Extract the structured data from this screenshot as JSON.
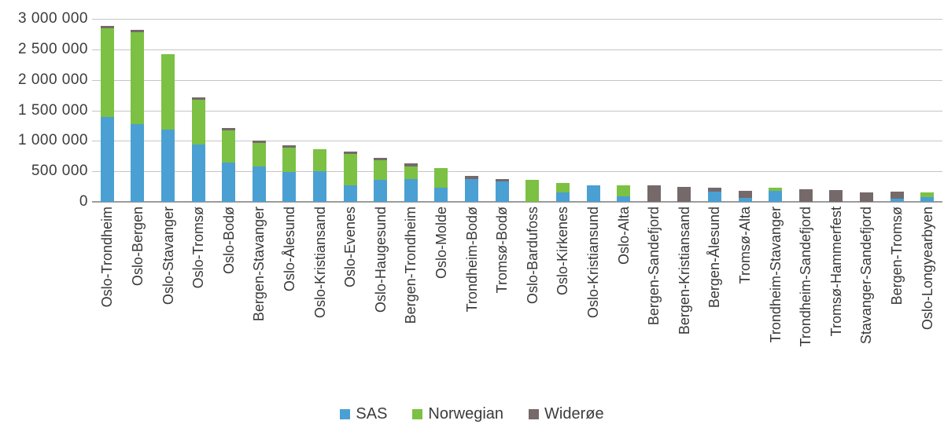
{
  "chart_data": {
    "type": "bar",
    "stacked": true,
    "title": "",
    "xlabel": "",
    "ylabel": "",
    "ylim": [
      0,
      3000000
    ],
    "grid": true,
    "legend_position": "bottom",
    "y_ticks": [
      {
        "label": "3 000 000",
        "value": 3000000
      },
      {
        "label": "2 500 000",
        "value": 2500000
      },
      {
        "label": "2 000 000",
        "value": 2000000
      },
      {
        "label": "1 500 000",
        "value": 1500000
      },
      {
        "label": "1 000 000",
        "value": 1000000
      },
      {
        "label": "500 000",
        "value": 500000
      },
      {
        "label": "0",
        "value": 0
      }
    ],
    "categories": [
      "Oslo-Trondheim",
      "Oslo-Bergen",
      "Oslo-Stavanger",
      "Oslo-Tromsø",
      "Oslo-Bodø",
      "Bergen-Stavanger",
      "Oslo-Ålesund",
      "Oslo-Kristiansand",
      "Oslo-Evenes",
      "Oslo-Haugesund",
      "Bergen-Trondheim",
      "Oslo-Molde",
      "Trondheim-Bodø",
      "Tromsø-Bodø",
      "Oslo-Bardufoss",
      "Oslo-Kirkenes",
      "Oslo-Kristiansund",
      "Oslo-Alta",
      "Bergen-Sandefjord",
      "Bergen-Kristiansand",
      "Bergen-Ålesund",
      "Tromsø-Alta",
      "Trondheim-Stavanger",
      "Trondheim-Sandefjord",
      "Tromsø-Hammerfest",
      "Stavanger-Sandefjord",
      "Bergen-Tromsø",
      "Oslo-Longyearbyen"
    ],
    "series": [
      {
        "name": "SAS",
        "color": "#4aa0d2",
        "values": [
          1390000,
          1280000,
          1190000,
          940000,
          650000,
          575000,
          490000,
          500000,
          265000,
          365000,
          375000,
          230000,
          375000,
          335000,
          0,
          155000,
          265000,
          90000,
          0,
          0,
          170000,
          70000,
          185000,
          0,
          0,
          0,
          55000,
          80000
        ]
      },
      {
        "name": "Norwegian",
        "color": "#7cc143",
        "values": [
          1460000,
          1500000,
          1230000,
          730000,
          520000,
          395000,
          400000,
          365000,
          515000,
          320000,
          210000,
          330000,
          0,
          0,
          355000,
          150000,
          0,
          185000,
          0,
          0,
          0,
          0,
          50000,
          0,
          0,
          0,
          0,
          70000
        ]
      },
      {
        "name": "Widerøe",
        "color": "#75696a",
        "values": [
          40000,
          40000,
          0,
          40000,
          40000,
          40000,
          40000,
          0,
          40000,
          40000,
          40000,
          0,
          45000,
          45000,
          0,
          0,
          0,
          0,
          270000,
          240000,
          60000,
          110000,
          0,
          205000,
          190000,
          160000,
          110000,
          0
        ]
      }
    ],
    "colors": {
      "gridline": "#c5c5c5",
      "axis_line": "#9b9b9b",
      "text": "#3c3c3c"
    }
  }
}
